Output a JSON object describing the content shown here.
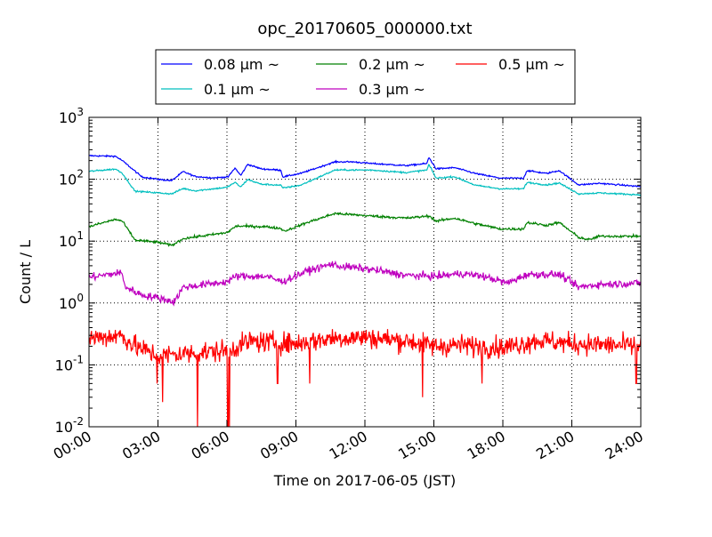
{
  "chart_data": {
    "type": "line",
    "title": "opc_20170605_000000.txt",
    "xlabel": "Time on 2017-06-05 (JST)",
    "ylabel": "Count / L",
    "xlim_hours": [
      0,
      24
    ],
    "ylim": [
      0.01,
      1000
    ],
    "yscale": "log",
    "grid": true,
    "legend_placement": "top-center",
    "x_ticks": [
      {
        "hour": 0,
        "label": "00:00"
      },
      {
        "hour": 3,
        "label": "03:00"
      },
      {
        "hour": 6,
        "label": "06:00"
      },
      {
        "hour": 9,
        "label": "09:00"
      },
      {
        "hour": 12,
        "label": "12:00"
      },
      {
        "hour": 15,
        "label": "15:00"
      },
      {
        "hour": 18,
        "label": "18:00"
      },
      {
        "hour": 21,
        "label": "21:00"
      },
      {
        "hour": 24,
        "label": "24:00"
      }
    ],
    "y_ticks": [
      {
        "value": 1000,
        "base": "10",
        "exp": "3"
      },
      {
        "value": 100,
        "base": "10",
        "exp": "2"
      },
      {
        "value": 10,
        "base": "10",
        "exp": "1"
      },
      {
        "value": 1,
        "base": "10",
        "exp": "0"
      },
      {
        "value": 0.1,
        "base": "10",
        "exp": "-1"
      },
      {
        "value": 0.01,
        "base": "10",
        "exp": "-2"
      }
    ],
    "series": [
      {
        "name": "0.08 μm ~",
        "color": "#0000ff",
        "noise_dex": 0.012,
        "points": [
          [
            0,
            240
          ],
          [
            1.15,
            235
          ],
          [
            1.45,
            200
          ],
          [
            2.3,
            109
          ],
          [
            3.06,
            99
          ],
          [
            3.6,
            95
          ],
          [
            4.1,
            133
          ],
          [
            4.6,
            111
          ],
          [
            5.4,
            105
          ],
          [
            6.05,
            109
          ],
          [
            6.35,
            152
          ],
          [
            6.6,
            115
          ],
          [
            6.9,
            174
          ],
          [
            7.5,
            147
          ],
          [
            8.35,
            140
          ],
          [
            8.42,
            109
          ],
          [
            9.2,
            124
          ],
          [
            10.7,
            191
          ],
          [
            11.5,
            191
          ],
          [
            12.25,
            180
          ],
          [
            13.8,
            166
          ],
          [
            14.7,
            180
          ],
          [
            14.78,
            226
          ],
          [
            15.1,
            147
          ],
          [
            15.9,
            154
          ],
          [
            16.8,
            124
          ],
          [
            17.9,
            104
          ],
          [
            18.9,
            104
          ],
          [
            19.05,
            138
          ],
          [
            19.9,
            124
          ],
          [
            20.45,
            138
          ],
          [
            21.3,
            81
          ],
          [
            22.2,
            86
          ],
          [
            24,
            76
          ]
        ]
      },
      {
        "name": "0.1 μm ~",
        "color": "#00bfbf",
        "noise_dex": 0.012,
        "points": [
          [
            0,
            134
          ],
          [
            1.15,
            146
          ],
          [
            1.45,
            125
          ],
          [
            2.0,
            64
          ],
          [
            3.06,
            60
          ],
          [
            3.6,
            58
          ],
          [
            4.1,
            71
          ],
          [
            4.6,
            65
          ],
          [
            6.0,
            74
          ],
          [
            6.35,
            89
          ],
          [
            6.6,
            75
          ],
          [
            6.9,
            99
          ],
          [
            7.5,
            83
          ],
          [
            8.35,
            80
          ],
          [
            8.42,
            72
          ],
          [
            9.2,
            80
          ],
          [
            10.7,
            141
          ],
          [
            12.25,
            141
          ],
          [
            13.8,
            128
          ],
          [
            14.7,
            141
          ],
          [
            14.78,
            174
          ],
          [
            15.1,
            104
          ],
          [
            15.9,
            110
          ],
          [
            16.8,
            80
          ],
          [
            17.9,
            70
          ],
          [
            18.9,
            70
          ],
          [
            19.05,
            89
          ],
          [
            19.9,
            81
          ],
          [
            20.45,
            87
          ],
          [
            21.3,
            58
          ],
          [
            22.2,
            60
          ],
          [
            24,
            56
          ]
        ]
      },
      {
        "name": "0.2 μm ~",
        "color": "#008000",
        "noise_dex": 0.02,
        "points": [
          [
            0,
            17.1
          ],
          [
            1.15,
            22.5
          ],
          [
            1.45,
            21
          ],
          [
            2.0,
            10.4
          ],
          [
            3.06,
            9.5
          ],
          [
            3.6,
            8.5
          ],
          [
            4.1,
            11.0
          ],
          [
            6.0,
            13.7
          ],
          [
            6.4,
            17.5
          ],
          [
            7.7,
            17.1
          ],
          [
            8.35,
            16
          ],
          [
            8.5,
            14.5
          ],
          [
            9.5,
            20
          ],
          [
            10.7,
            28
          ],
          [
            12.25,
            25.5
          ],
          [
            13.8,
            23.5
          ],
          [
            14.8,
            25.5
          ],
          [
            15.1,
            21
          ],
          [
            15.9,
            23.5
          ],
          [
            16.8,
            19.2
          ],
          [
            17.9,
            15.7
          ],
          [
            18.9,
            15.7
          ],
          [
            19.05,
            20
          ],
          [
            19.9,
            18
          ],
          [
            20.45,
            20
          ],
          [
            21.3,
            11.5
          ],
          [
            21.75,
            10.5
          ],
          [
            22.2,
            12
          ],
          [
            24,
            12
          ]
        ]
      },
      {
        "name": "0.3 μm ~",
        "color": "#bf00bf",
        "noise_dex": 0.06,
        "points": [
          [
            0,
            2.6
          ],
          [
            1.4,
            3.1
          ],
          [
            1.6,
            1.8
          ],
          [
            2.3,
            1.35
          ],
          [
            3.06,
            1.2
          ],
          [
            3.7,
            1.05
          ],
          [
            4.1,
            1.8
          ],
          [
            6.0,
            2.2
          ],
          [
            6.4,
            2.7
          ],
          [
            7.7,
            2.7
          ],
          [
            8.4,
            2.2
          ],
          [
            9.5,
            3.3
          ],
          [
            10.6,
            4.3
          ],
          [
            10.75,
            4.0
          ],
          [
            12.25,
            3.5
          ],
          [
            13.8,
            2.8
          ],
          [
            15.1,
            2.7
          ],
          [
            16.2,
            3.0
          ],
          [
            17.15,
            2.7
          ],
          [
            18.2,
            2.1
          ],
          [
            19.05,
            2.9
          ],
          [
            20.45,
            2.9
          ],
          [
            21.3,
            1.8
          ],
          [
            22.2,
            2.0
          ],
          [
            24,
            2.1
          ]
        ]
      },
      {
        "name": "0.5 μm ~",
        "color": "#ff0000",
        "noise_dex": 0.17,
        "points": [
          [
            0,
            0.27
          ],
          [
            1.4,
            0.3
          ],
          [
            2.0,
            0.2
          ],
          [
            3.0,
            0.14
          ],
          [
            4.0,
            0.15
          ],
          [
            5.0,
            0.16
          ],
          [
            6.0,
            0.17
          ],
          [
            7.0,
            0.24
          ],
          [
            9.0,
            0.22
          ],
          [
            10.5,
            0.27
          ],
          [
            12.0,
            0.28
          ],
          [
            14.0,
            0.24
          ],
          [
            15.0,
            0.2
          ],
          [
            16.0,
            0.21
          ],
          [
            18.0,
            0.19
          ],
          [
            19.5,
            0.25
          ],
          [
            21.0,
            0.22
          ],
          [
            24,
            0.2
          ]
        ],
        "dips": [
          [
            2.95,
            0.05
          ],
          [
            3.2,
            0.025
          ],
          [
            4.72,
            0.01
          ],
          [
            6.04,
            0.01
          ],
          [
            6.1,
            0.01
          ],
          [
            8.2,
            0.05
          ],
          [
            9.6,
            0.05
          ],
          [
            14.5,
            0.03
          ],
          [
            17.1,
            0.05
          ],
          [
            23.8,
            0.05
          ]
        ]
      }
    ]
  }
}
